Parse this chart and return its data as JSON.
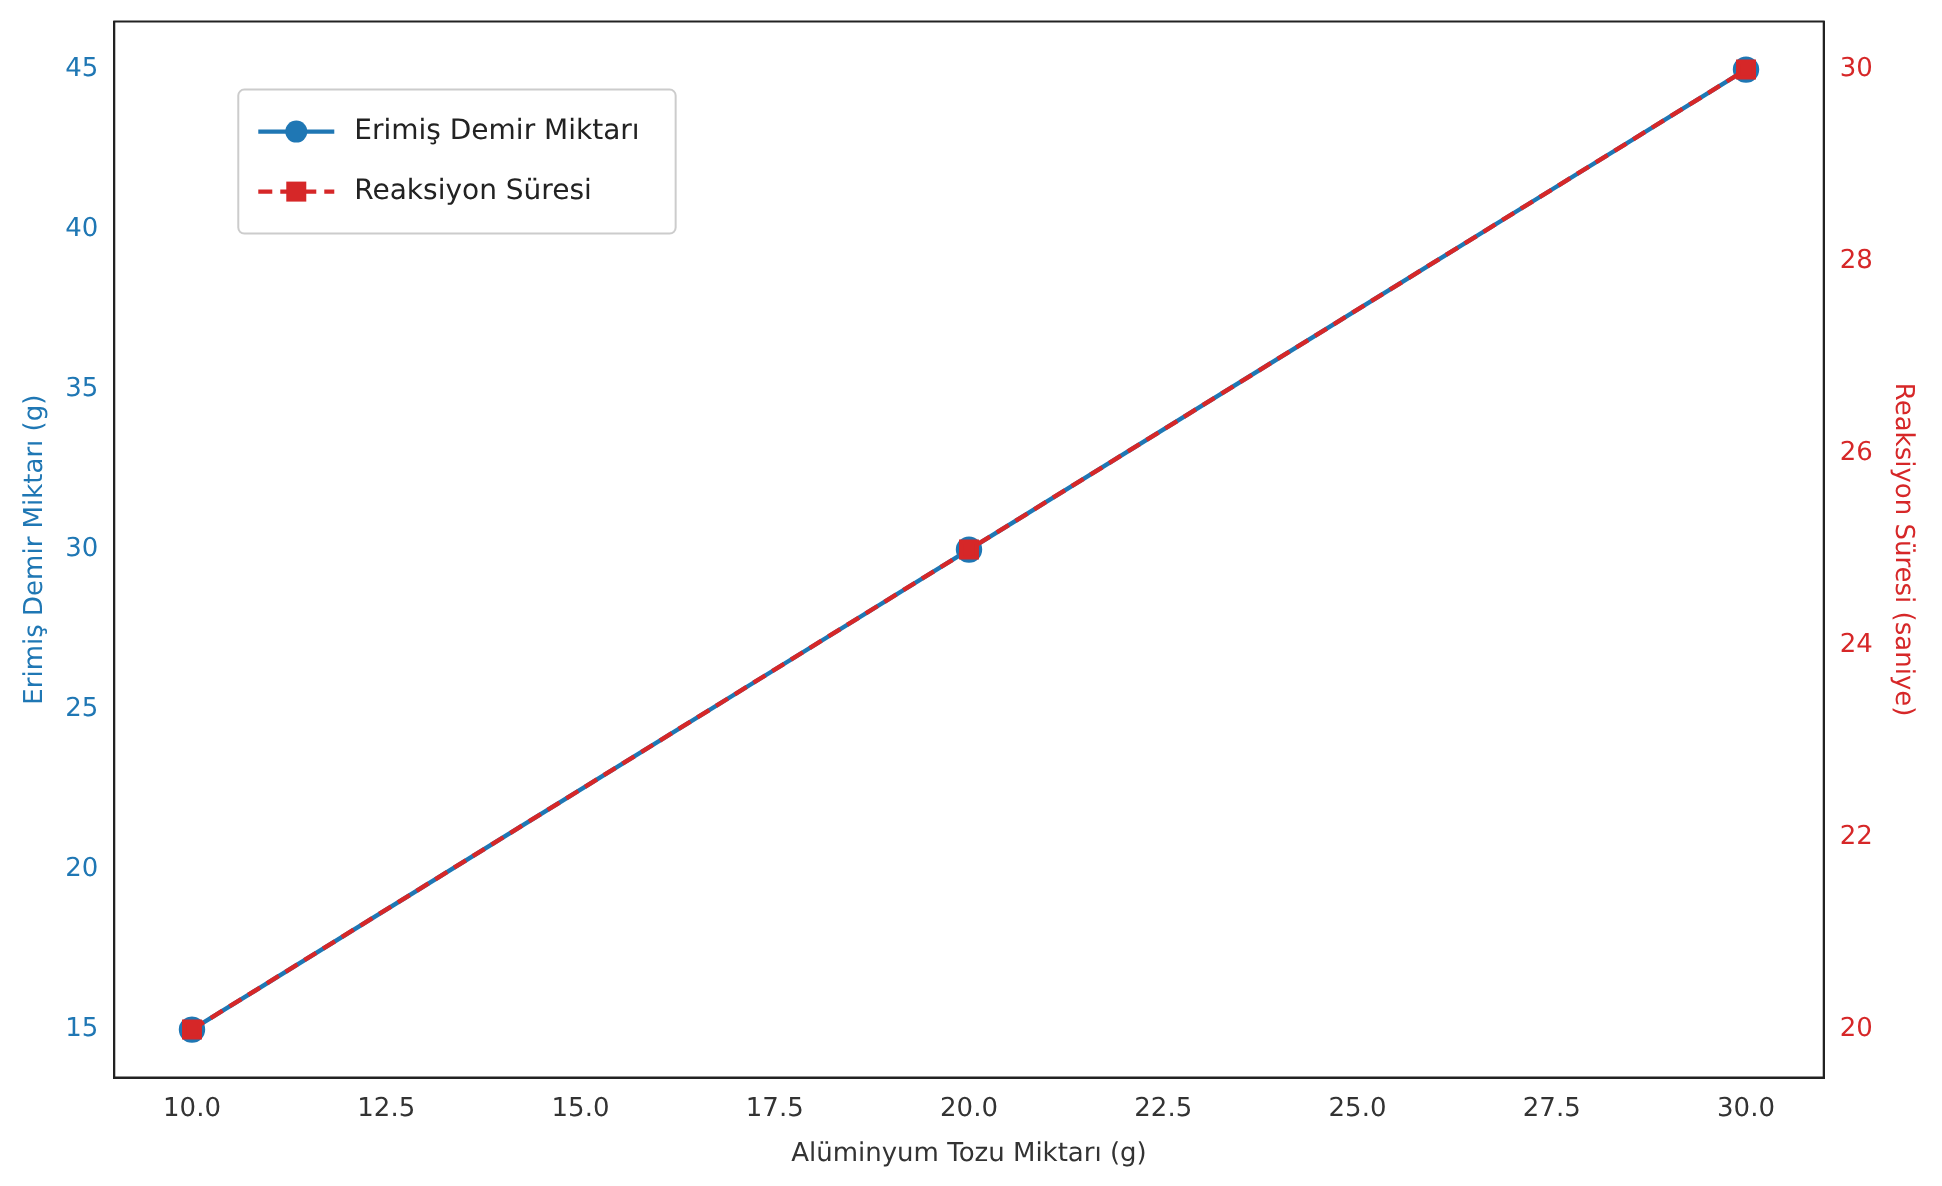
{
  "chart_data": {
    "type": "line",
    "xlabel": "Alüminyum Tozu Miktarı (g)",
    "ylabel": "Erimiş Demir Miktarı (g)",
    "y2label": "Reaksiyon Süresi (saniye)",
    "x": [
      10,
      20,
      30
    ],
    "series": [
      {
        "name": "Erimiş Demir Miktarı",
        "color": "#1f77b4",
        "values": [
          15,
          30,
          45
        ],
        "marker": "circle",
        "line_style": "solid"
      },
      {
        "name": "Reaksiyon Süresi",
        "color": "#d62728",
        "values": [
          20,
          25,
          30
        ],
        "axis": "y2",
        "marker": "square",
        "line_style": "dashed"
      }
    ],
    "xlim": [
      9,
      31
    ],
    "xticks": [
      {
        "value": 10,
        "label": "10.0"
      },
      {
        "value": 12.5,
        "label": "12.5"
      },
      {
        "value": 15,
        "label": "15.0"
      },
      {
        "value": 17.5,
        "label": "17.5"
      },
      {
        "value": 20,
        "label": "20.0"
      },
      {
        "value": 22.5,
        "label": "22.5"
      },
      {
        "value": 25,
        "label": "25.0"
      },
      {
        "value": 27.5,
        "label": "27.5"
      },
      {
        "value": 30,
        "label": "30.0"
      }
    ],
    "ylim": [
      13.5,
      46.5
    ],
    "yticks": [
      15,
      20,
      25,
      30,
      35,
      40,
      45
    ],
    "y2lim": [
      19.5,
      30.5
    ],
    "y2ticks": [
      20,
      22,
      24,
      26,
      28,
      30
    ],
    "grid": false,
    "legend": "top left"
  }
}
